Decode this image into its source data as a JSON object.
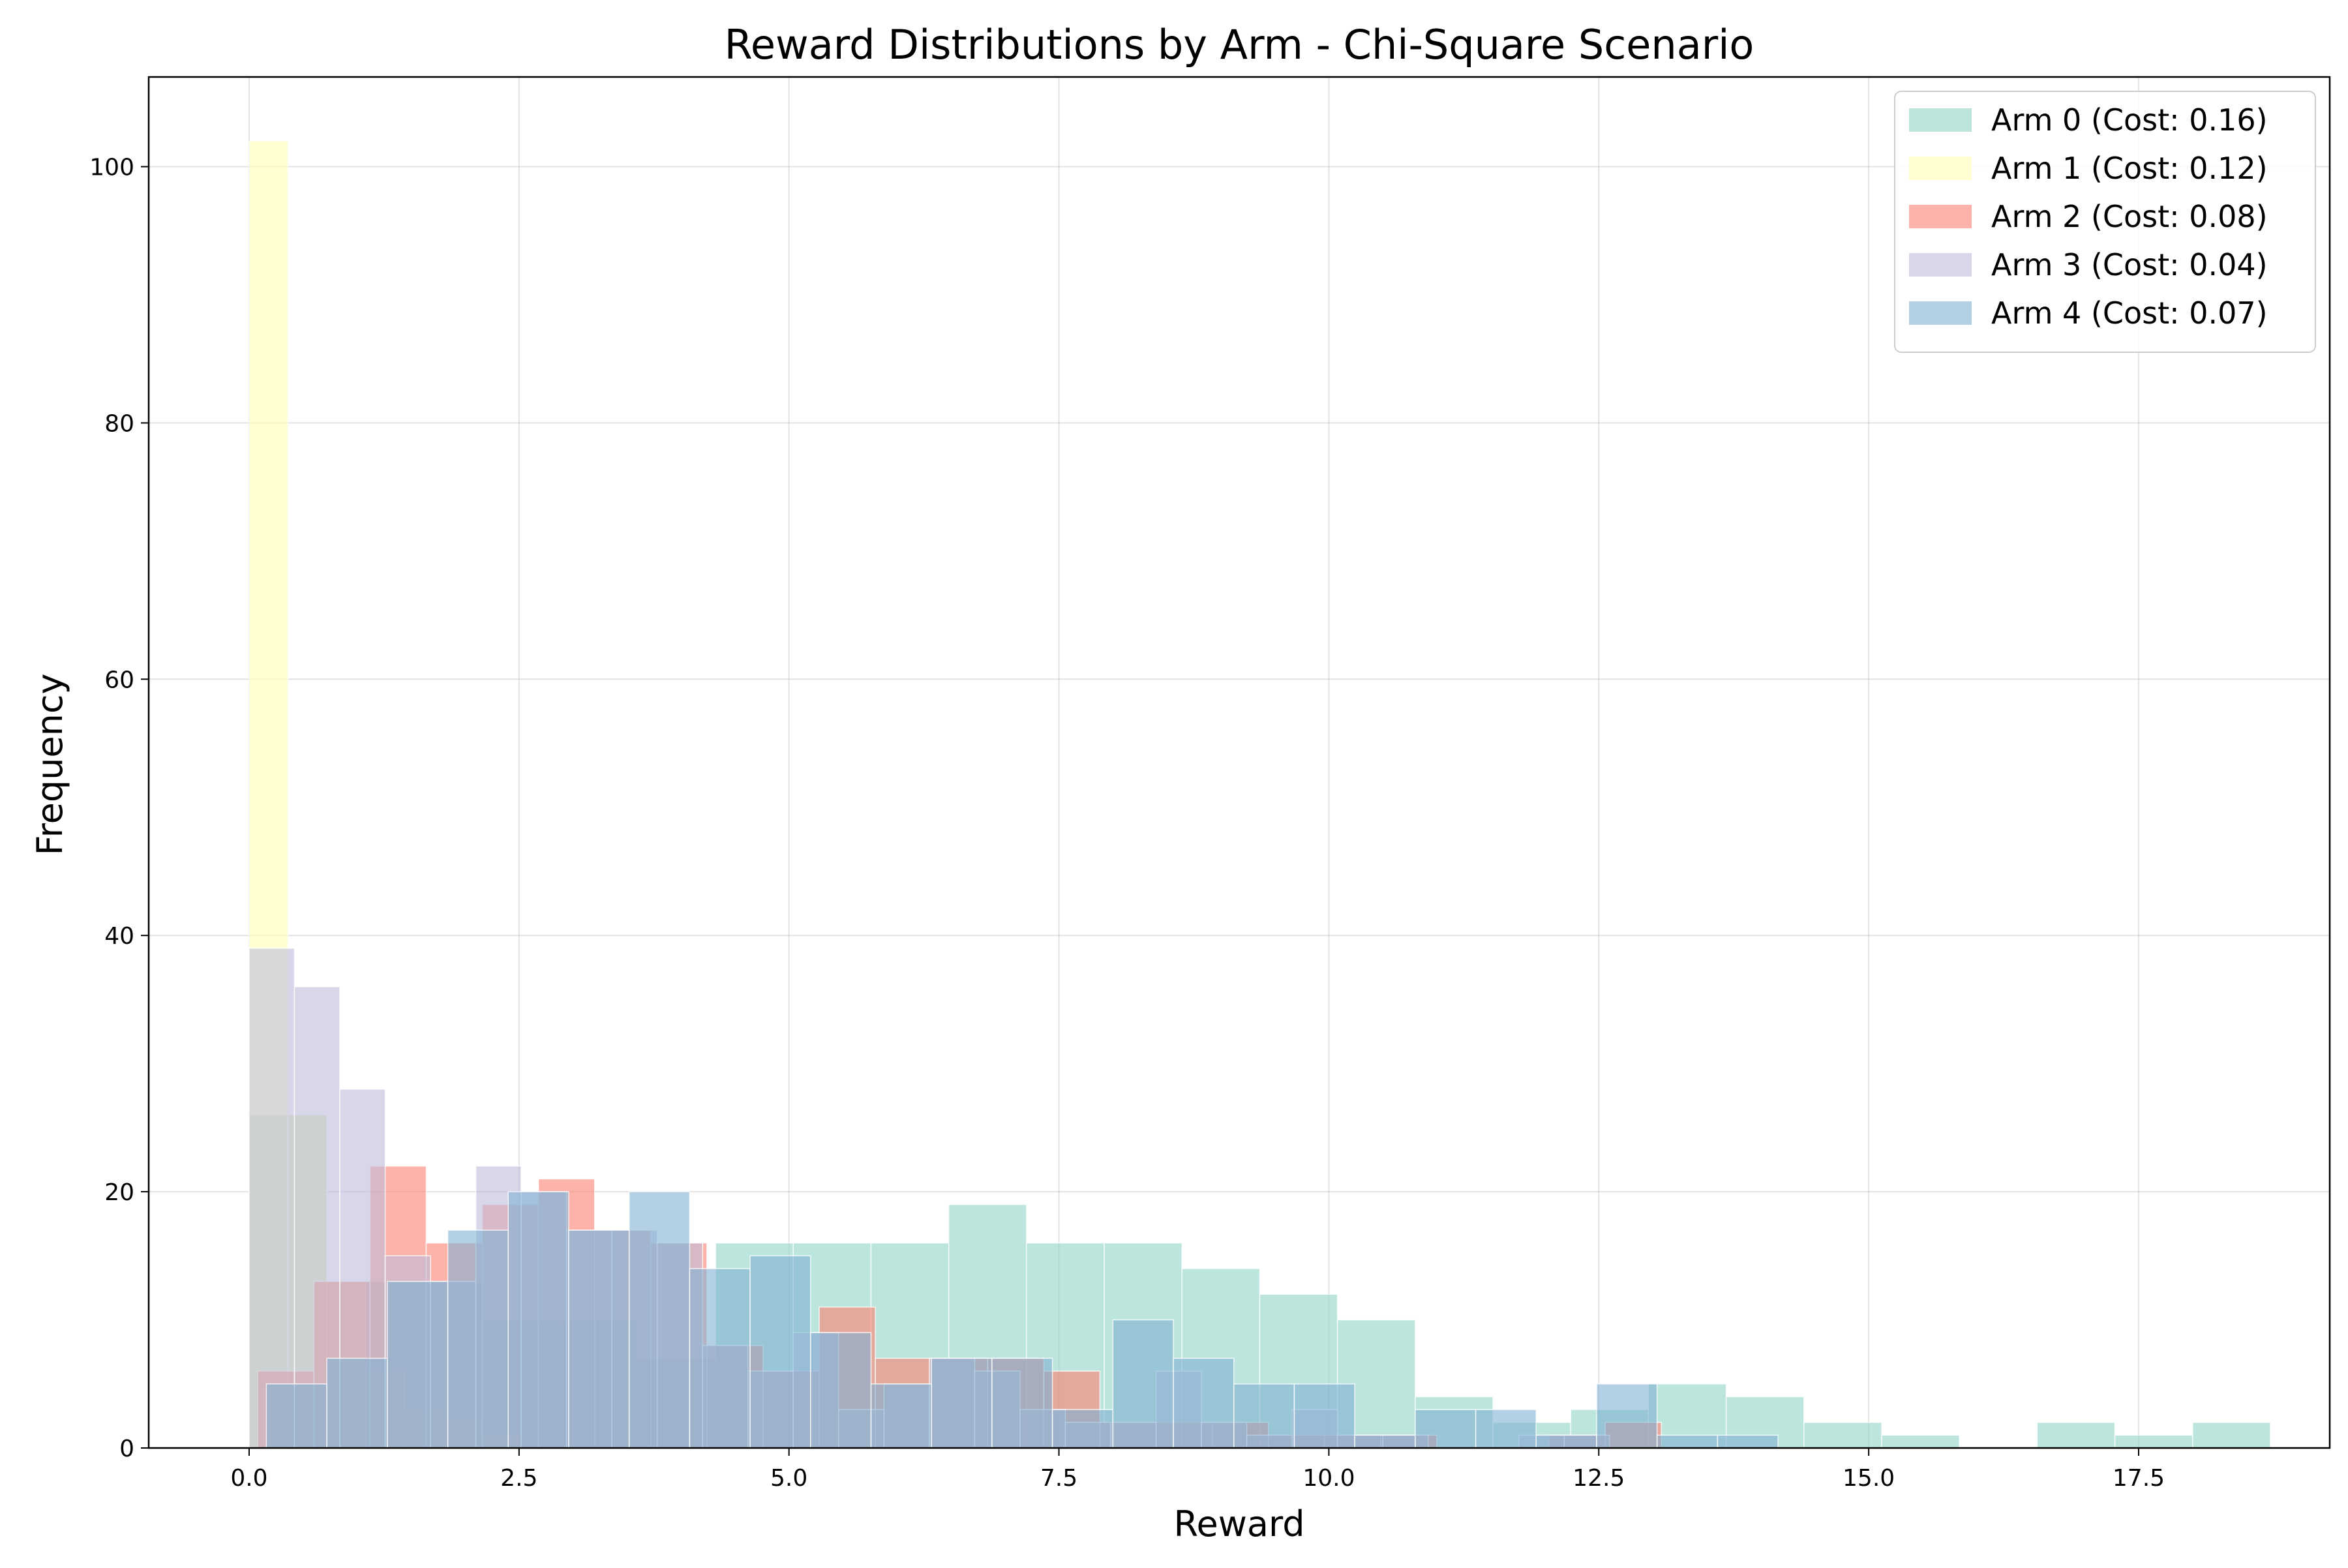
{
  "chart_data": {
    "type": "bar",
    "title": "Reward Distributions by Arm - Chi-Square Scenario",
    "xlabel": "Reward",
    "ylabel": "Frequency",
    "xlim": [
      -0.93,
      19.27
    ],
    "ylim": [
      0,
      107
    ],
    "xticks": [
      0.0,
      2.5,
      5.0,
      7.5,
      10.0,
      12.5,
      15.0,
      17.5
    ],
    "xtick_labels": [
      "0.0",
      "2.5",
      "5.0",
      "7.5",
      "10.0",
      "12.5",
      "15.0",
      "17.5"
    ],
    "yticks": [
      0,
      20,
      40,
      60,
      80,
      100
    ],
    "ytick_labels": [
      "0",
      "20",
      "40",
      "60",
      "80",
      "100"
    ],
    "grid": true,
    "legend_position": "top-right",
    "series": [
      {
        "name": "Arm 0 (Cost: 0.16)",
        "color": "#8dd3c7",
        "opacity": 0.6,
        "bins": [
          [
            0.0,
            0.72,
            26
          ],
          [
            0.72,
            1.44,
            13
          ],
          [
            1.44,
            2.16,
            13
          ],
          [
            2.16,
            2.88,
            10
          ],
          [
            2.88,
            3.6,
            10
          ],
          [
            3.6,
            4.32,
            7
          ],
          [
            4.32,
            5.04,
            16
          ],
          [
            5.04,
            5.76,
            16
          ],
          [
            5.76,
            6.48,
            16
          ],
          [
            6.48,
            7.2,
            19
          ],
          [
            7.2,
            7.92,
            16
          ],
          [
            7.92,
            8.64,
            16
          ],
          [
            8.64,
            9.36,
            14
          ],
          [
            9.36,
            10.08,
            12
          ],
          [
            10.08,
            10.8,
            10
          ],
          [
            10.8,
            11.52,
            4
          ],
          [
            11.52,
            12.24,
            2
          ],
          [
            12.24,
            12.96,
            3
          ],
          [
            12.96,
            13.68,
            5
          ],
          [
            13.68,
            14.4,
            4
          ],
          [
            14.4,
            15.12,
            2
          ],
          [
            15.12,
            15.84,
            1
          ],
          [
            16.56,
            17.28,
            2
          ],
          [
            17.28,
            18.0,
            1
          ],
          [
            18.0,
            18.72,
            2
          ]
        ]
      },
      {
        "name": "Arm 1 (Cost: 0.12)",
        "color": "#ffffb3",
        "opacity": 0.6,
        "bins": [
          [
            0.0,
            0.36,
            102
          ],
          [
            0.36,
            0.72,
            26
          ],
          [
            0.72,
            1.08,
            13
          ],
          [
            1.08,
            1.44,
            6
          ],
          [
            1.44,
            1.8,
            3
          ],
          [
            1.8,
            2.16,
            2
          ],
          [
            2.16,
            2.52,
            1
          ]
        ]
      },
      {
        "name": "Arm 2 (Cost: 0.08)",
        "color": "#fb8072",
        "opacity": 0.6,
        "bins": [
          [
            0.08,
            0.6,
            6
          ],
          [
            0.6,
            1.12,
            13
          ],
          [
            1.12,
            1.64,
            22
          ],
          [
            1.64,
            2.16,
            16
          ],
          [
            2.16,
            2.68,
            19
          ],
          [
            2.68,
            3.2,
            21
          ],
          [
            3.2,
            3.72,
            17
          ],
          [
            3.72,
            4.24,
            16
          ],
          [
            4.24,
            4.76,
            8
          ],
          [
            4.76,
            5.28,
            6
          ],
          [
            5.28,
            5.8,
            11
          ],
          [
            5.8,
            6.32,
            7
          ],
          [
            6.32,
            6.84,
            7
          ],
          [
            6.84,
            7.36,
            7
          ],
          [
            7.36,
            7.88,
            6
          ],
          [
            7.88,
            8.4,
            2
          ],
          [
            8.4,
            8.92,
            2
          ],
          [
            8.92,
            9.44,
            2
          ],
          [
            9.44,
            9.96,
            1
          ],
          [
            9.96,
            10.48,
            1
          ],
          [
            10.48,
            11.0,
            1
          ],
          [
            12.04,
            12.56,
            1
          ],
          [
            12.56,
            13.08,
            2
          ]
        ]
      },
      {
        "name": "Arm 3 (Cost: 0.04)",
        "color": "#bebada",
        "opacity": 0.6,
        "bins": [
          [
            0.0,
            0.42,
            39
          ],
          [
            0.42,
            0.84,
            36
          ],
          [
            0.84,
            1.26,
            28
          ],
          [
            1.26,
            1.68,
            15
          ],
          [
            1.68,
            2.1,
            13
          ],
          [
            2.1,
            2.52,
            22
          ],
          [
            2.52,
            2.94,
            20
          ],
          [
            2.94,
            3.36,
            17
          ],
          [
            3.36,
            3.78,
            17
          ],
          [
            3.78,
            4.2,
            16
          ],
          [
            4.2,
            4.62,
            8
          ],
          [
            4.62,
            5.04,
            6
          ],
          [
            5.04,
            5.46,
            9
          ],
          [
            5.46,
            5.88,
            3
          ],
          [
            5.88,
            6.3,
            5
          ],
          [
            6.3,
            6.72,
            7
          ],
          [
            6.72,
            7.14,
            6
          ],
          [
            7.14,
            7.56,
            3
          ],
          [
            7.56,
            7.98,
            2
          ],
          [
            7.98,
            8.4,
            2
          ],
          [
            8.4,
            8.82,
            6
          ],
          [
            8.82,
            9.24,
            2
          ],
          [
            9.24,
            9.66,
            1
          ],
          [
            9.66,
            10.08,
            3
          ],
          [
            10.08,
            10.5,
            1
          ],
          [
            10.5,
            10.92,
            1
          ],
          [
            11.76,
            12.18,
            1
          ],
          [
            12.18,
            12.6,
            1
          ]
        ]
      },
      {
        "name": "Arm 4 (Cost: 0.07)",
        "color": "#80b1d3",
        "opacity": 0.6,
        "bins": [
          [
            0.16,
            0.72,
            5
          ],
          [
            0.72,
            1.28,
            7
          ],
          [
            1.28,
            1.84,
            13
          ],
          [
            1.84,
            2.4,
            17
          ],
          [
            2.4,
            2.96,
            20
          ],
          [
            2.96,
            3.52,
            17
          ],
          [
            3.52,
            4.08,
            20
          ],
          [
            4.08,
            4.64,
            14
          ],
          [
            4.64,
            5.2,
            15
          ],
          [
            5.2,
            5.76,
            9
          ],
          [
            5.76,
            6.32,
            5
          ],
          [
            6.32,
            6.88,
            7
          ],
          [
            6.88,
            7.44,
            7
          ],
          [
            7.44,
            8.0,
            3
          ],
          [
            8.0,
            8.56,
            10
          ],
          [
            8.56,
            9.12,
            7
          ],
          [
            9.12,
            9.68,
            5
          ],
          [
            9.68,
            10.24,
            5
          ],
          [
            10.24,
            10.8,
            1
          ],
          [
            10.8,
            11.36,
            3
          ],
          [
            11.36,
            11.92,
            3
          ],
          [
            11.92,
            12.48,
            1
          ],
          [
            12.48,
            13.04,
            5
          ],
          [
            13.04,
            13.6,
            1
          ],
          [
            13.6,
            14.16,
            1
          ]
        ]
      }
    ]
  }
}
